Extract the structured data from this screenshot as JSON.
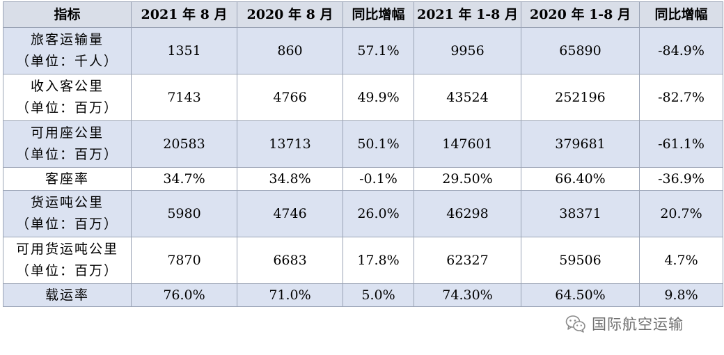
{
  "table": {
    "headers": [
      "指标",
      "2021 年 8 月",
      "2020 年 8 月",
      "同比增幅",
      "2021 年 1-8 月",
      "2020 年 1-8 月",
      "同比增幅"
    ],
    "rows": [
      {
        "name": "旅客运输量",
        "unit": "（单位：千人）",
        "values": [
          "1351",
          "860",
          "57.1%",
          "9956",
          "65890",
          "-84.9%"
        ]
      },
      {
        "name": "收入客公里",
        "unit": "（单位：百万）",
        "values": [
          "7143",
          "4766",
          "49.9%",
          "43524",
          "252196",
          "-82.7%"
        ]
      },
      {
        "name": "可用座公里",
        "unit": "（单位：百万）",
        "values": [
          "20583",
          "13713",
          "50.1%",
          "147601",
          "379681",
          "-61.1%"
        ]
      },
      {
        "name": "客座率",
        "unit": "",
        "values": [
          "34.7%",
          "34.8%",
          "-0.1%",
          "29.50%",
          "66.40%",
          "-36.9%"
        ]
      },
      {
        "name": "货运吨公里",
        "unit": "（单位：百万）",
        "values": [
          "5980",
          "4746",
          "26.0%",
          "46298",
          "38371",
          "20.7%"
        ]
      },
      {
        "name": "可用货运吨公里",
        "unit": "（单位：百万）",
        "values": [
          "7870",
          "6683",
          "17.8%",
          "62327",
          "59506",
          "4.7%"
        ]
      },
      {
        "name": "载运率",
        "unit": "",
        "values": [
          "76.0%",
          "71.0%",
          "5.0%",
          "74.30%",
          "64.50%",
          "9.8%"
        ]
      }
    ]
  },
  "watermark": {
    "icon": "wechat-icon",
    "text": "国际航空运输"
  },
  "colors": {
    "header_bg": "#d9dee8",
    "shaded_row_bg": "#dbe2f1",
    "border": "#9aa3b5",
    "watermark_text": "#6e6e6e"
  }
}
